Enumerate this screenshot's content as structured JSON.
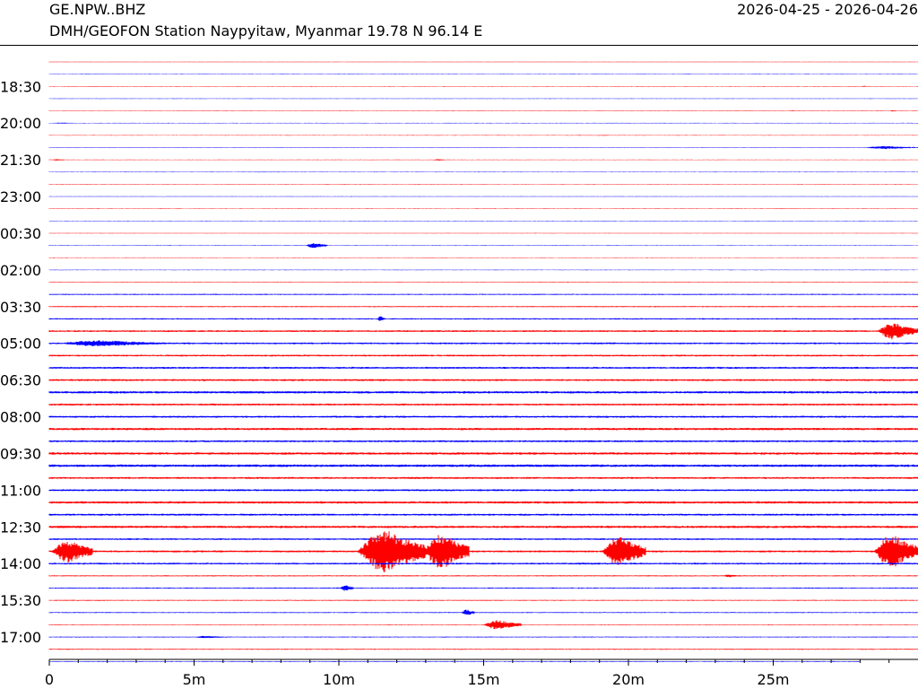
{
  "header": {
    "station_code": "GE.NPW..BHZ",
    "station_description": "DMH/GEOFON Station Naypyitaw, Myanmar  19.78 N 96.14 E",
    "date_range": "2026-04-25 - 2026-04-26"
  },
  "chart_data": {
    "type": "line",
    "title": "GE.NPW..BHZ",
    "subtitle": "DMH/GEOFON Station Naypyitaw, Myanmar  19.78 N 96.14 E",
    "xlabel": "",
    "ylabel": "",
    "x_unit": "minutes",
    "xlim": [
      0,
      30
    ],
    "x_ticks": [
      0,
      5,
      10,
      15,
      20,
      25
    ],
    "x_tick_labels": [
      "0",
      "5m",
      "10m",
      "15m",
      "20m",
      "25m"
    ],
    "row_interval_minutes": 30,
    "row_count": 50,
    "y_ticks": [
      "18:30",
      "20:00",
      "21:30",
      "23:00",
      "00:30",
      "02:00",
      "03:30",
      "05:00",
      "06:30",
      "08:00",
      "09:30",
      "11:00",
      "12:30",
      "14:00",
      "15:30",
      "17:00"
    ],
    "trace_colors": [
      "#ff0000",
      "#0000ff"
    ],
    "grid": false,
    "legend": "none",
    "baseline_noise": [
      0.3,
      0.3,
      0.3,
      0.3,
      0.3,
      0.3,
      0.3,
      0.3,
      0.3,
      0.3,
      0.3,
      0.3,
      0.3,
      0.3,
      0.3,
      0.3,
      0.3,
      0.3,
      0.4,
      0.6,
      0.6,
      0.7,
      0.9,
      0.9,
      0.9,
      1.0,
      1.0,
      1.2,
      1.0,
      1.0,
      1.2,
      1.0,
      1.2,
      1.3,
      1.0,
      1.0,
      1.2,
      1.0,
      1.2,
      0.9,
      1.0,
      0.9,
      0.6,
      0.6,
      0.5,
      0.5,
      0.4,
      0.5,
      0.5,
      0.4
    ],
    "events": [
      {
        "row": 2,
        "start_min": 28.0,
        "dur_min": 0.3,
        "amp": 1.5
      },
      {
        "row": 4,
        "start_min": 25.5,
        "dur_min": 0.4,
        "amp": 1.2
      },
      {
        "row": 4,
        "start_min": 29.0,
        "dur_min": 0.3,
        "amp": 2.0
      },
      {
        "row": 5,
        "start_min": 0.0,
        "dur_min": 1.0,
        "amp": 1.5
      },
      {
        "row": 6,
        "start_min": 18.5,
        "dur_min": 1.5,
        "amp": 1.0
      },
      {
        "row": 7,
        "start_min": 28.0,
        "dur_min": 2.0,
        "amp": 4.0
      },
      {
        "row": 8,
        "start_min": 0.0,
        "dur_min": 0.6,
        "amp": 2.0
      },
      {
        "row": 8,
        "start_min": 13.2,
        "dur_min": 0.5,
        "amp": 2.0
      },
      {
        "row": 9,
        "start_min": 3.6,
        "dur_min": 0.2,
        "amp": 1.0
      },
      {
        "row": 15,
        "start_min": 8.8,
        "dur_min": 0.8,
        "amp": 7.0
      },
      {
        "row": 21,
        "start_min": 11.3,
        "dur_min": 0.3,
        "amp": 7.0
      },
      {
        "row": 22,
        "start_min": 28.5,
        "dur_min": 1.5,
        "amp": 22.0
      },
      {
        "row": 23,
        "start_min": 0.0,
        "dur_min": 4.0,
        "amp": 8.0
      },
      {
        "row": 40,
        "start_min": 0.0,
        "dur_min": 1.5,
        "amp": 30.0
      },
      {
        "row": 40,
        "start_min": 10.5,
        "dur_min": 2.5,
        "amp": 55.0
      },
      {
        "row": 40,
        "start_min": 12.8,
        "dur_min": 1.7,
        "amp": 45.0
      },
      {
        "row": 40,
        "start_min": 19.0,
        "dur_min": 1.6,
        "amp": 38.0
      },
      {
        "row": 40,
        "start_min": 28.4,
        "dur_min": 1.6,
        "amp": 45.0
      },
      {
        "row": 42,
        "start_min": 23.2,
        "dur_min": 0.6,
        "amp": 4.0
      },
      {
        "row": 43,
        "start_min": 10.0,
        "dur_min": 0.5,
        "amp": 8.0
      },
      {
        "row": 45,
        "start_min": 14.2,
        "dur_min": 0.5,
        "amp": 8.0
      },
      {
        "row": 46,
        "start_min": 14.9,
        "dur_min": 1.4,
        "amp": 12.0
      },
      {
        "row": 47,
        "start_min": 4.8,
        "dur_min": 1.5,
        "amp": 3.0
      },
      {
        "row": 47,
        "start_min": 8.5,
        "dur_min": 0.8,
        "amp": 1.5
      }
    ],
    "last_row_end_min": 28.0
  }
}
